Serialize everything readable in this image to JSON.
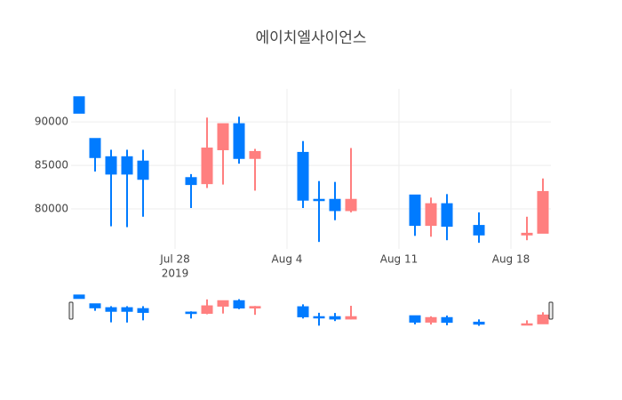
{
  "chart_data": {
    "type": "candlestick",
    "title": "에이치엘사이언스",
    "x": [
      "2019-07-22",
      "2019-07-23",
      "2019-07-24",
      "2019-07-25",
      "2019-07-26",
      "2019-07-29",
      "2019-07-30",
      "2019-07-31",
      "2019-08-01",
      "2019-08-02",
      "2019-08-05",
      "2019-08-06",
      "2019-08-07",
      "2019-08-08",
      "2019-08-12",
      "2019-08-13",
      "2019-08-14",
      "2019-08-16",
      "2019-08-19",
      "2019-08-20"
    ],
    "open": [
      92900,
      88100,
      86000,
      86000,
      85500,
      83600,
      82900,
      86800,
      89800,
      85800,
      86500,
      81100,
      81100,
      79800,
      81600,
      78100,
      80600,
      78100,
      77000,
      77200
    ],
    "high": [
      92900,
      88100,
      86800,
      86800,
      86800,
      84000,
      90500,
      89800,
      90600,
      86900,
      87800,
      83200,
      83100,
      87000,
      81600,
      81300,
      81700,
      79600,
      79100,
      83500
    ],
    "low": [
      91000,
      84300,
      78000,
      77900,
      79100,
      80100,
      82400,
      82800,
      85200,
      82100,
      80100,
      76200,
      78700,
      79600,
      76900,
      76800,
      76400,
      76100,
      76400,
      77200
    ],
    "close": [
      91000,
      85900,
      84000,
      84000,
      83400,
      82800,
      87000,
      89800,
      85800,
      86600,
      81000,
      81000,
      79800,
      81100,
      78100,
      80600,
      78000,
      77000,
      77200,
      82000
    ],
    "increasing_color": "#ff7f7f",
    "decreasing_color": "#007bff",
    "xlim": [
      "2019-07-21T12:00:00Z",
      "2019-08-20T12:00:00Z"
    ],
    "xticks": [
      {
        "value": "2019-07-28",
        "label": "Jul 28",
        "sublabel": "2019"
      },
      {
        "value": "2019-08-04",
        "label": "Aug 4"
      },
      {
        "value": "2019-08-11",
        "label": "Aug 11"
      },
      {
        "value": "2019-08-18",
        "label": "Aug 18"
      }
    ],
    "ylim": [
      75400,
      93800
    ],
    "yticks": [
      80000,
      85000,
      90000
    ],
    "grid": true,
    "rangeslider": true
  }
}
